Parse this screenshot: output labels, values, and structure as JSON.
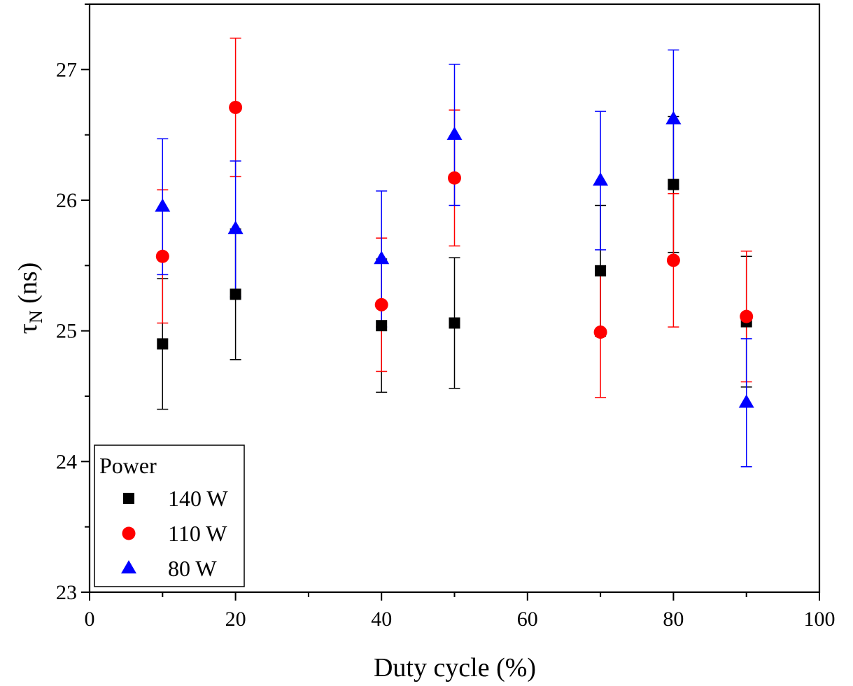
{
  "chart_data": {
    "type": "scatter",
    "xlabel": "Duty cycle (%)",
    "ylabel_main": "τ",
    "ylabel_sub": "N",
    "ylabel_unit": " (ns)",
    "xlim": [
      0,
      100
    ],
    "ylim": [
      23,
      27.5
    ],
    "xticks": [
      0,
      20,
      40,
      60,
      80,
      100
    ],
    "yticks": [
      23,
      24,
      25,
      26,
      27
    ],
    "legend": {
      "title": "Power",
      "position": "bottom-left"
    },
    "series": [
      {
        "name": "140 W",
        "marker": "square",
        "color": "#000000",
        "x": [
          10,
          20,
          40,
          50,
          70,
          80,
          90
        ],
        "y": [
          24.9,
          25.28,
          25.04,
          25.06,
          25.46,
          26.12,
          25.07
        ],
        "err": [
          0.5,
          0.5,
          0.51,
          0.5,
          0.5,
          0.52,
          0.5
        ]
      },
      {
        "name": "110 W",
        "marker": "circle",
        "color": "#ff0000",
        "x": [
          10,
          20,
          40,
          50,
          70,
          80,
          90
        ],
        "y": [
          25.57,
          26.71,
          25.2,
          26.17,
          24.99,
          25.54,
          25.11
        ],
        "err": [
          0.51,
          0.53,
          0.51,
          0.52,
          0.5,
          0.51,
          0.5
        ]
      },
      {
        "name": "80 W",
        "marker": "triangle",
        "color": "#0000ff",
        "x": [
          10,
          20,
          40,
          50,
          70,
          80,
          90
        ],
        "y": [
          25.95,
          25.78,
          25.55,
          26.5,
          26.15,
          26.62,
          24.45
        ],
        "err": [
          0.52,
          0.52,
          0.52,
          0.54,
          0.53,
          0.53,
          0.49
        ]
      }
    ]
  }
}
